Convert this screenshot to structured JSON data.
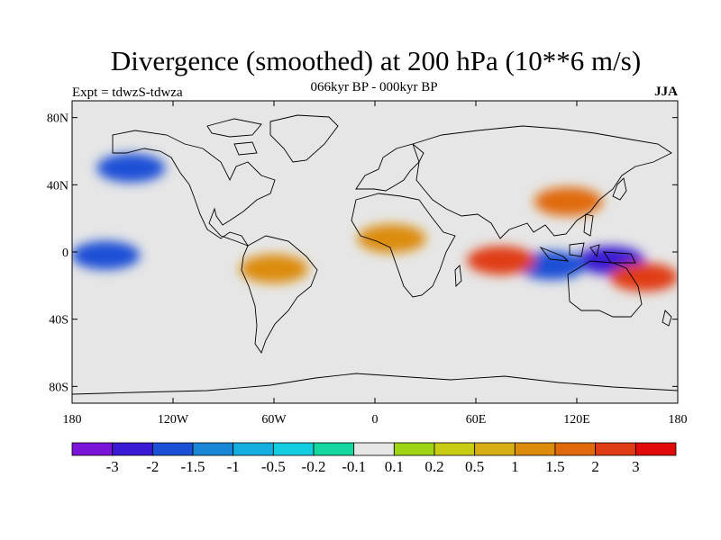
{
  "title": "Divergence (smoothed) at 200 hPa (10**6 m/s)",
  "subtitle": "066kyr BP - 000kyr BP",
  "experiment": "Expt = tdwzS-tdwza",
  "season": "JJA",
  "map": {
    "lon_range": [
      -180,
      180
    ],
    "lat_range": [
      -90,
      90
    ],
    "lat_ticks": [
      {
        "value": 80,
        "label": "80N"
      },
      {
        "value": 40,
        "label": "40N"
      },
      {
        "value": 0,
        "label": "0"
      },
      {
        "value": -40,
        "label": "40S"
      },
      {
        "value": -80,
        "label": "80S"
      }
    ],
    "lon_ticks": [
      {
        "value": -180,
        "label": "180"
      },
      {
        "value": -120,
        "label": "120W"
      },
      {
        "value": -60,
        "label": "60W"
      },
      {
        "value": 0,
        "label": "0"
      },
      {
        "value": 60,
        "label": "60E"
      },
      {
        "value": 120,
        "label": "120E"
      },
      {
        "value": 180,
        "label": "180"
      }
    ],
    "background_color": "#e6e6e6"
  },
  "colorbar": {
    "colors": [
      "#7a14d6",
      "#3a1ad2",
      "#1a4fd6",
      "#1a86d6",
      "#14aee0",
      "#14cde0",
      "#14d7a0",
      "#e6e6e6",
      "#9fd414",
      "#c8cd14",
      "#d7af14",
      "#dc8c0a",
      "#e06a0a",
      "#e03c14",
      "#e00a0a"
    ],
    "labels": [
      "-3",
      "-2",
      "-1.5",
      "-1",
      "-0.5",
      "-0.2",
      "-0.1",
      "0.1",
      "0.2",
      "0.5",
      "1",
      "1.5",
      "2",
      "3"
    ]
  },
  "field_anomalies": [
    {
      "name": "pacific-west-convergence",
      "lon": 140,
      "lat": -5,
      "value": -3
    },
    {
      "name": "maritime-continent-convergence",
      "lon": 105,
      "lat": -8,
      "value": -2
    },
    {
      "name": "east-pacific-convergence",
      "lon": -160,
      "lat": -2,
      "value": -2
    },
    {
      "name": "north-pacific-convergence",
      "lon": -145,
      "lat": 50,
      "value": -2
    },
    {
      "name": "indian-ocean-divergence",
      "lon": 75,
      "lat": -5,
      "value": 2
    },
    {
      "name": "australia-divergence",
      "lon": 160,
      "lat": -15,
      "value": 2
    },
    {
      "name": "east-asia-divergence",
      "lon": 115,
      "lat": 30,
      "value": 1.5
    },
    {
      "name": "south-america-divergence",
      "lon": -60,
      "lat": -10,
      "value": 1
    },
    {
      "name": "west-africa-divergence",
      "lon": 10,
      "lat": 8,
      "value": 1
    }
  ]
}
